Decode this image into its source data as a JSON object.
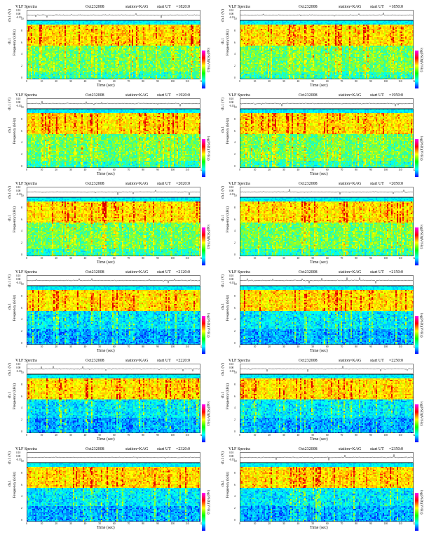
{
  "panels": [
    {
      "title": "VLF Spectra",
      "date": "Oct232008",
      "station": "station=KAG",
      "start_label": "start UT",
      "start_time": "=1820:0"
    },
    {
      "title": "VLF Spectra",
      "date": "Oct232008",
      "station": "station=KAG",
      "start_label": "start UT",
      "start_time": "=1850:0"
    },
    {
      "title": "VLF Spectra",
      "date": "Oct232008",
      "station": "station=KAG",
      "start_label": "start UT",
      "start_time": "=1920:0"
    },
    {
      "title": "VLF Spectra",
      "date": "Oct232008",
      "station": "station=KAG",
      "start_label": "start UT",
      "start_time": "=1950:0"
    },
    {
      "title": "VLF Spectra",
      "date": "Oct232008",
      "station": "station=KAG",
      "start_label": "start UT",
      "start_time": "=2020:0"
    },
    {
      "title": "VLF Spectra",
      "date": "Oct232008",
      "station": "station=KAG",
      "start_label": "start UT",
      "start_time": "=2050:0"
    },
    {
      "title": "VLF Spectra",
      "date": "Oct232008",
      "station": "station=KAG",
      "start_label": "start UT",
      "start_time": "=2120:0"
    },
    {
      "title": "VLF Spectra",
      "date": "Oct232008",
      "station": "station=KAG",
      "start_label": "start UT",
      "start_time": "=2150:0"
    },
    {
      "title": "VLF Spectra",
      "date": "Oct232008",
      "station": "station=KAG",
      "start_label": "start UT",
      "start_time": "=2220:0"
    },
    {
      "title": "VLF Spectra",
      "date": "Oct232008",
      "station": "station=KAG",
      "start_label": "start UT",
      "start_time": "=2250:0"
    },
    {
      "title": "VLF Spectra",
      "date": "Oct232008",
      "station": "station=KAG",
      "start_label": "start UT",
      "start_time": "=2320:0"
    },
    {
      "title": "VLF Spectra",
      "date": "Oct232008",
      "station": "station=KAG",
      "start_label": "start UT",
      "start_time": "=2350:0"
    }
  ],
  "labels": {
    "ts_ylabel": "ch.1 (V)",
    "spec_ylabel_1": "ch.1",
    "spec_ylabel_2": "Frequency (kHz)",
    "xlabel": "Time (sec)",
    "colorbar_label": "log(PSD)(V²/Hz)"
  },
  "colors": {
    "colormap": [
      "#0000ff",
      "#00ffff",
      "#00ff00",
      "#ffff00",
      "#ff0000",
      "#ff00ff"
    ],
    "background": "#ffffff"
  },
  "chart_data": {
    "type": "heatmap",
    "count": 12,
    "x": {
      "label": "Time (sec)",
      "range": [
        0,
        120
      ],
      "ticks": [
        0,
        10,
        20,
        30,
        40,
        50,
        60,
        70,
        80,
        90,
        100,
        110,
        120
      ]
    },
    "y_spectrogram": {
      "label": "Frequency (kHz)",
      "range": [
        0,
        10
      ],
      "ticks": [
        0,
        2,
        4,
        6,
        8,
        10
      ]
    },
    "y_timeseries": {
      "label": "ch.1 (V)",
      "ticks": [
        "0.10",
        "0.00",
        "-0.10"
      ]
    },
    "colorbar": {
      "label": "log(PSD)(V²/Hz)"
    }
  }
}
